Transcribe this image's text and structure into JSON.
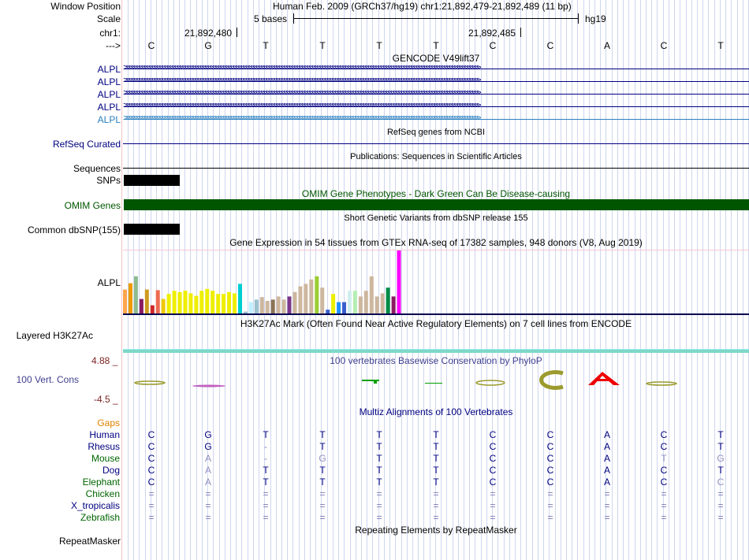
{
  "header": {
    "window_position_label": "Window Position",
    "window_position_value": "Human Feb. 2009 (GRCh37/hg19)   chr1:21,892,479-21,892,489 (11 bp)",
    "scale_label": "Scale",
    "scale_value": "5 bases",
    "scale_db": "hg19",
    "chrom_label": "chr1:",
    "coord_1": "21,892,480",
    "coord_2": "21,892,485",
    "strand_label": "--->"
  },
  "sequence": {
    "bases": [
      "C",
      "G",
      "T",
      "T",
      "T",
      "T",
      "C",
      "C",
      "A",
      "C",
      "T"
    ]
  },
  "gencode": {
    "title": "GENCODE V49lift37",
    "tracks": [
      {
        "label": "ALPL",
        "color": "#000080"
      },
      {
        "label": "ALPL",
        "color": "#000080"
      },
      {
        "label": "ALPL",
        "color": "#000080"
      },
      {
        "label": "ALPL",
        "color": "#000080"
      },
      {
        "label": "ALPL",
        "color": "#2a7fbf"
      }
    ]
  },
  "refseq": {
    "title": "RefSeq genes from NCBI",
    "label": "RefSeq Curated"
  },
  "publications": {
    "title": "Publications: Sequences in Scientific Articles",
    "label": "Sequences"
  },
  "snps": {
    "label": "SNPs"
  },
  "omim": {
    "title": "OMIM Gene Phenotypes - Dark Green Can Be Disease-causing",
    "label": "OMIM Genes",
    "color": "#005500"
  },
  "dbsnp": {
    "title": "Short Genetic Variants from dbSNP release 155",
    "label": "Common dbSNP(155)"
  },
  "gtex": {
    "title": "Gene Expression in 54 tissues from GTEx RNA-seq of 17382 samples, 948 donors (V8, Aug 2019)",
    "label": "ALPL",
    "bars": [
      {
        "v": 0.38,
        "c": "#ffa54f"
      },
      {
        "v": 0.48,
        "c": "#ee9a00"
      },
      {
        "v": 0.59,
        "c": "#8fbc8f"
      },
      {
        "v": 0.23,
        "c": "#8b1c62"
      },
      {
        "v": 0.38,
        "c": "#cd9b1d"
      },
      {
        "v": 0.13,
        "c": "#cd2626"
      },
      {
        "v": 0.37,
        "c": "#ee6a50"
      },
      {
        "v": 0.23,
        "c": "#eec900"
      },
      {
        "v": 0.31,
        "c": "#eeee00"
      },
      {
        "v": 0.36,
        "c": "#eeee00"
      },
      {
        "v": 0.34,
        "c": "#eeee00"
      },
      {
        "v": 0.36,
        "c": "#eeee00"
      },
      {
        "v": 0.32,
        "c": "#eeee00"
      },
      {
        "v": 0.28,
        "c": "#eeee00"
      },
      {
        "v": 0.36,
        "c": "#eeee00"
      },
      {
        "v": 0.39,
        "c": "#eeee00"
      },
      {
        "v": 0.36,
        "c": "#eeee00"
      },
      {
        "v": 0.31,
        "c": "#eeee00"
      },
      {
        "v": 0.31,
        "c": "#eeee00"
      },
      {
        "v": 0.34,
        "c": "#eeee00"
      },
      {
        "v": 0.32,
        "c": "#eeee00"
      },
      {
        "v": 0.47,
        "c": "#00ced1"
      },
      {
        "v": 0.03,
        "c": "#9ac0cd"
      },
      {
        "v": 0.18,
        "c": "#bfefff"
      },
      {
        "v": 0.22,
        "c": "#9ac0cd"
      },
      {
        "v": 0.26,
        "c": "#cdb79e"
      },
      {
        "v": 0.2,
        "c": "#cdb79e"
      },
      {
        "v": 0.22,
        "c": "#8b7355"
      },
      {
        "v": 0.27,
        "c": "#cdb79e"
      },
      {
        "v": 0.22,
        "c": "#cdb79e"
      },
      {
        "v": 0.27,
        "c": "#7a378b"
      },
      {
        "v": 0.34,
        "c": "#cdb79e"
      },
      {
        "v": 0.43,
        "c": "#cdb79e"
      },
      {
        "v": 0.47,
        "c": "#cdb79e"
      },
      {
        "v": 0.54,
        "c": "#cdb79e"
      },
      {
        "v": 0.59,
        "c": "#9acd32"
      },
      {
        "v": 0.41,
        "c": "#cdb79e"
      },
      {
        "v": 0.06,
        "c": "#3a5fcd"
      },
      {
        "v": 0.31,
        "c": "#eeee00"
      },
      {
        "v": 0.18,
        "c": "#1e90ff"
      },
      {
        "v": 0.18,
        "c": "#3a5fcd"
      },
      {
        "v": 0.36,
        "c": "#d1eeee"
      },
      {
        "v": 0.36,
        "c": "#b4eeb4"
      },
      {
        "v": 0.27,
        "c": "#cdb79e"
      },
      {
        "v": 0.36,
        "c": "#cdb79e"
      },
      {
        "v": 0.59,
        "c": "#cdb79e"
      },
      {
        "v": 0.27,
        "c": "#cdb79e"
      },
      {
        "v": 0.32,
        "c": "#cdb79e"
      },
      {
        "v": 0.41,
        "c": "#008b45"
      },
      {
        "v": 0.27,
        "c": "#8b1c62"
      },
      {
        "v": 1.0,
        "c": "#ff00ff"
      }
    ]
  },
  "h3k27ac": {
    "title": "H3K27Ac Mark (Often Found Near Active Regulatory Elements) on 7 cell lines from ENCODE",
    "label": "Layered H3K27Ac"
  },
  "phylop": {
    "title": "100 vertebrates Basewise Conservation by PhyloP",
    "label": "100 Vert. Cons",
    "max": "4.88 _",
    "min": "-4.5 _"
  },
  "multiz": {
    "title": "Multiz Alignments of 100 Vertebrates",
    "gaps_label": "Gaps",
    "species": [
      {
        "name": "Human",
        "color": "#000080",
        "bases": [
          "C",
          "G",
          "T",
          "T",
          "T",
          "T",
          "C",
          "C",
          "A",
          "C",
          "T"
        ]
      },
      {
        "name": "Rhesus",
        "color": "#000080",
        "bases": [
          "C",
          "G",
          "-",
          "T",
          "T",
          "T",
          "C",
          "C",
          "A",
          "C",
          "T"
        ]
      },
      {
        "name": "Mouse",
        "color": "#006400",
        "bases": [
          "C",
          "A",
          "-",
          "G",
          "T",
          "T",
          "C",
          "C",
          "A",
          "T",
          "G"
        ]
      },
      {
        "name": "Dog",
        "color": "#000080",
        "bases": [
          "C",
          "A",
          "T",
          "T",
          "T",
          "T",
          "C",
          "C",
          "A",
          "C",
          "T"
        ]
      },
      {
        "name": "Elephant",
        "color": "#006400",
        "bases": [
          "C",
          "A",
          "T",
          "T",
          "T",
          "T",
          "C",
          "C",
          "A",
          "C",
          "C"
        ]
      },
      {
        "name": "Chicken",
        "color": "#006400",
        "bases": [
          "=",
          "=",
          "=",
          "=",
          "=",
          "=",
          "=",
          "=",
          "=",
          "=",
          "="
        ]
      },
      {
        "name": "X_tropicalis",
        "color": "#000080",
        "bases": [
          "=",
          "=",
          "=",
          "=",
          "=",
          "=",
          "=",
          "=",
          "=",
          "=",
          "="
        ]
      },
      {
        "name": "Zebrafish",
        "color": "#006400",
        "bases": [
          "=",
          "=",
          "=",
          "=",
          "=",
          "=",
          "=",
          "=",
          "=",
          "=",
          "="
        ]
      }
    ]
  },
  "repeatmasker": {
    "title": "Repeating Elements by RepeatMasker",
    "label": "RepeatMasker"
  }
}
